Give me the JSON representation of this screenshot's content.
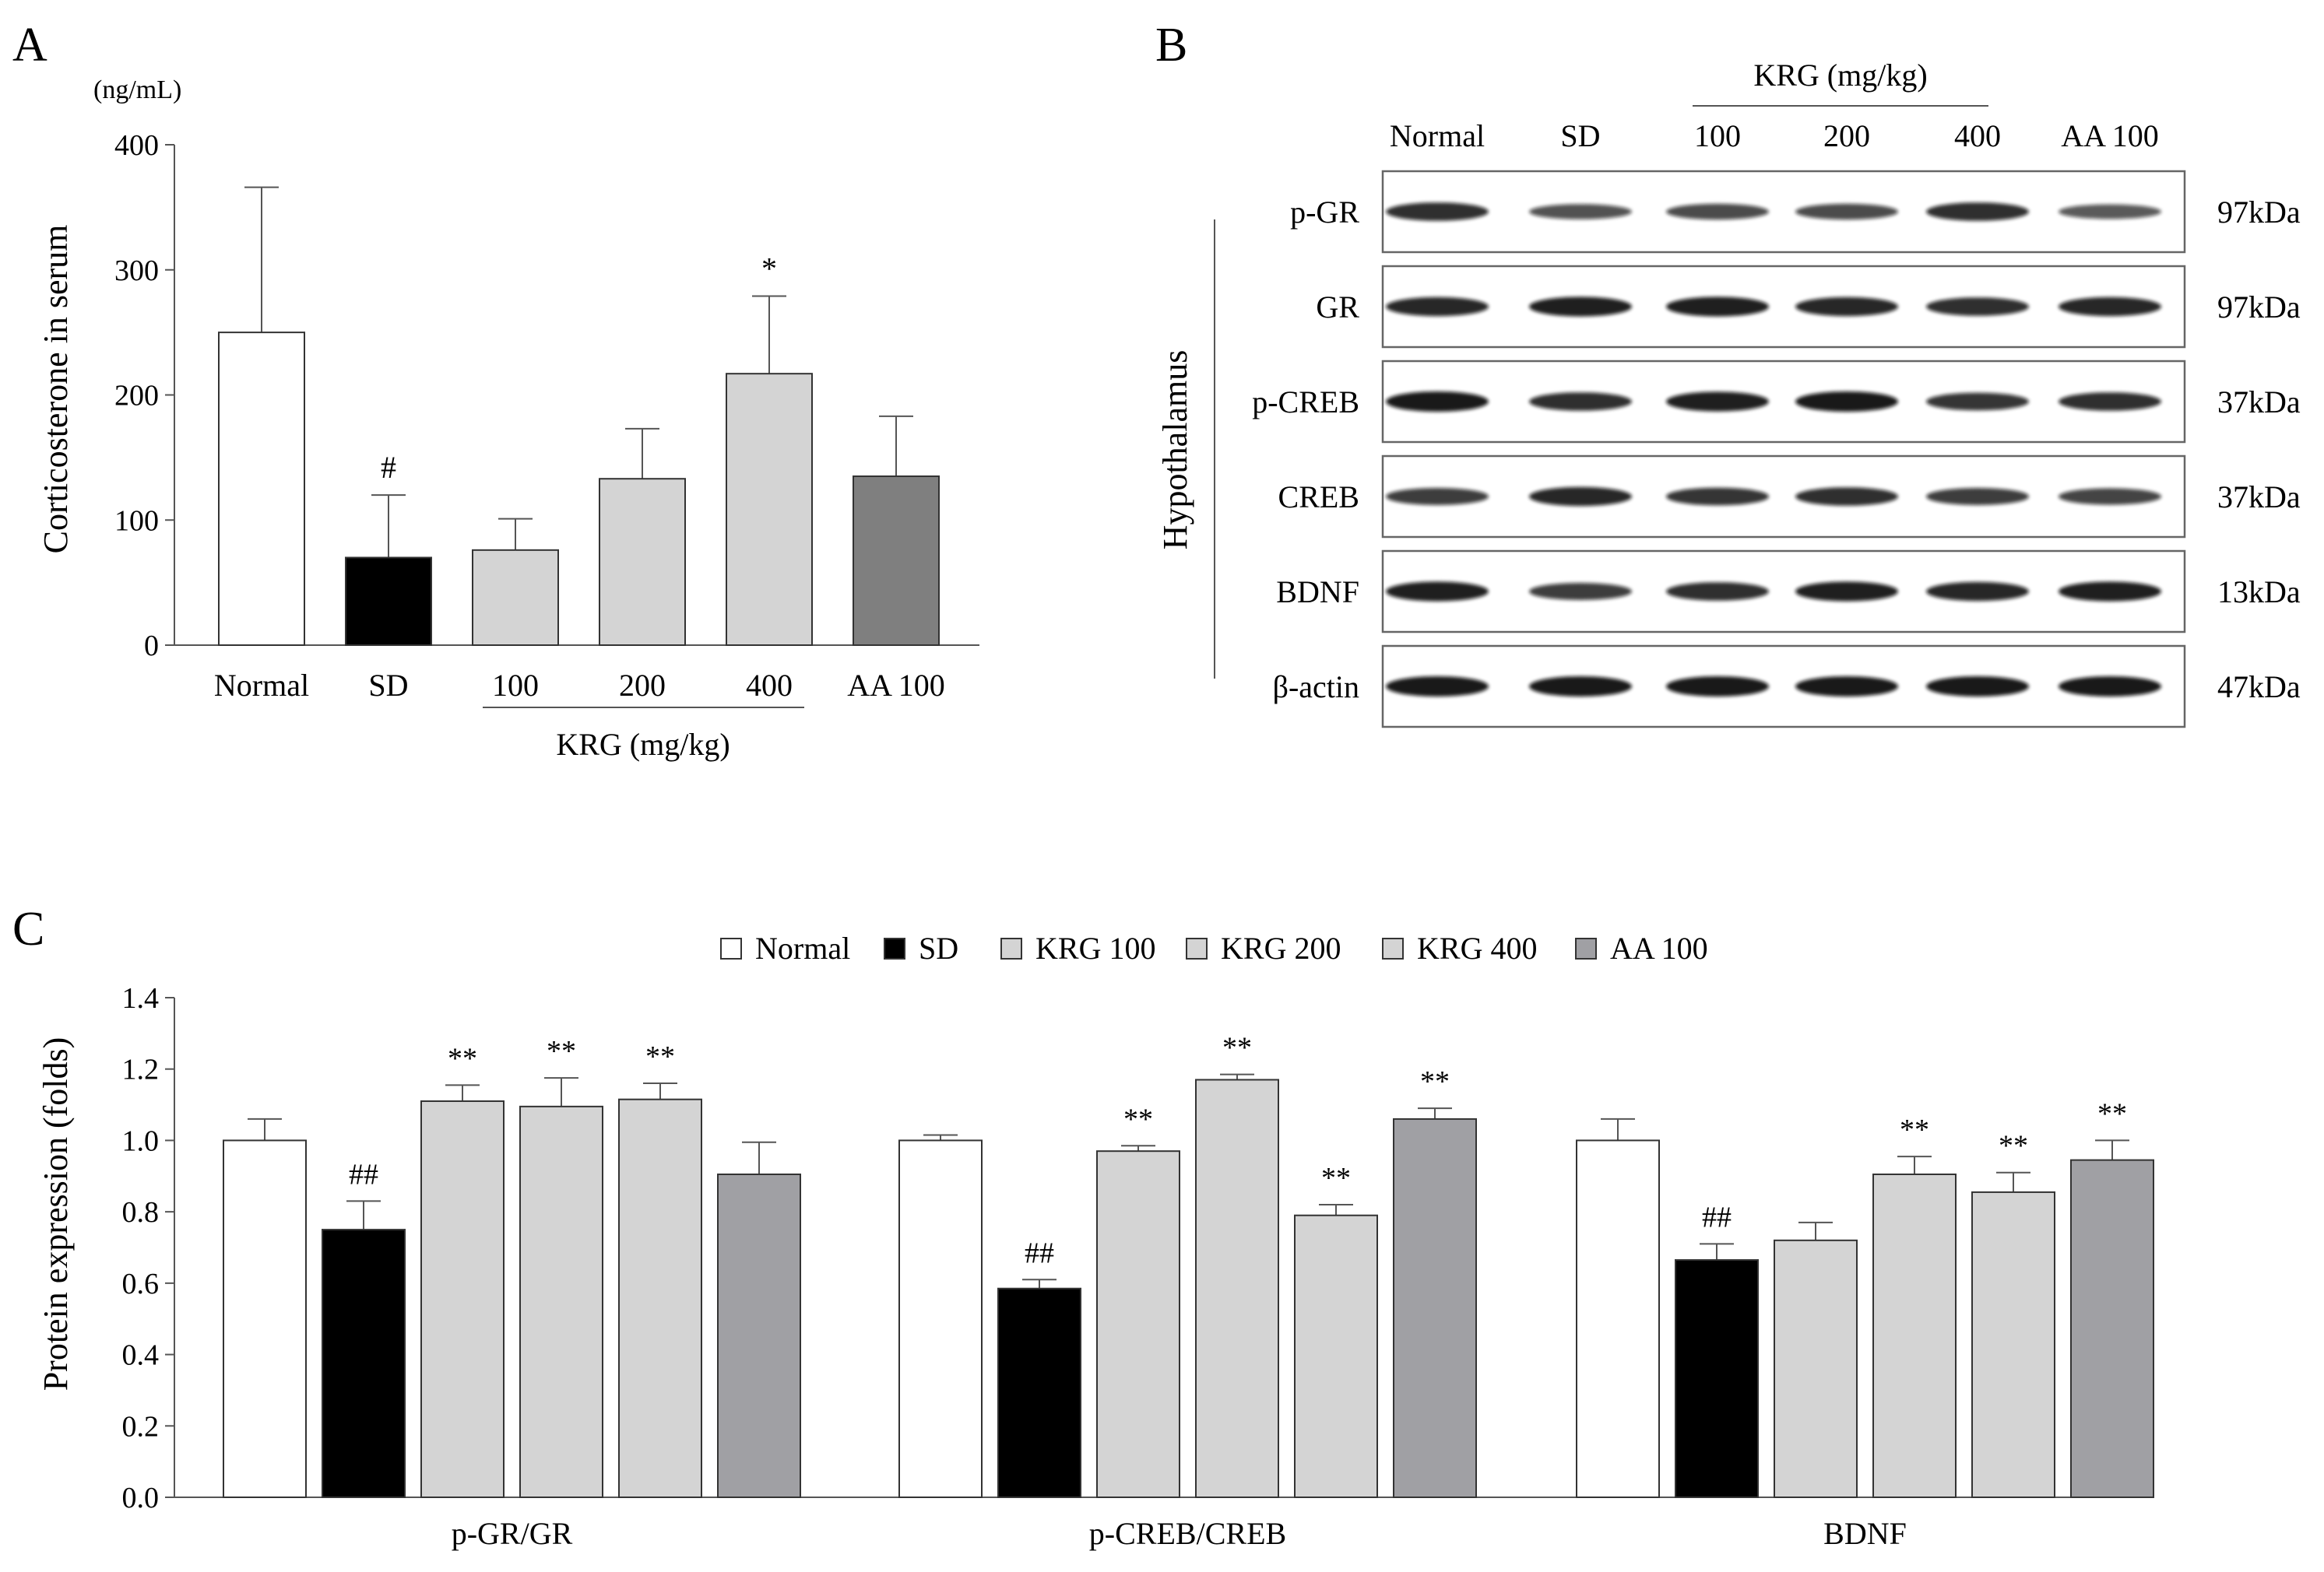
{
  "colors": {
    "Normal": "#ffffff",
    "SD": "#000000",
    "KRG": "#d4d4d4",
    "AA_A": "#7f7f7f",
    "AA_C": "#a0a0a4"
  },
  "panelA": {
    "label": "A",
    "unit": "(ng/mL)",
    "ylabel": "Corticosterone in serum",
    "group_label": "KRG (mg/kg)"
  },
  "panelB": {
    "label": "B",
    "group_label": "KRG (mg/kg)",
    "side_label": "Hypothalamus",
    "lanes": [
      "Normal",
      "SD",
      "100",
      "200",
      "400",
      "AA 100"
    ],
    "rows": [
      {
        "name": "p-GR",
        "kda": "97kDa",
        "intensity": [
          0.85,
          0.6,
          0.65,
          0.65,
          0.85,
          0.55
        ]
      },
      {
        "name": "GR",
        "kda": "97kDa",
        "intensity": [
          0.9,
          0.95,
          0.95,
          0.9,
          0.85,
          0.9
        ]
      },
      {
        "name": "p-CREB",
        "kda": "37kDa",
        "intensity": [
          1.0,
          0.85,
          0.95,
          1.0,
          0.8,
          0.85
        ]
      },
      {
        "name": "CREB",
        "kda": "37kDa",
        "intensity": [
          0.75,
          0.9,
          0.8,
          0.85,
          0.75,
          0.7
        ]
      },
      {
        "name": "BDNF",
        "kda": "13kDa",
        "intensity": [
          0.95,
          0.75,
          0.85,
          0.95,
          0.9,
          0.95
        ]
      },
      {
        "name": "β-actin",
        "kda": "47kDa",
        "intensity": [
          1.0,
          1.0,
          1.0,
          1.0,
          1.0,
          1.0
        ]
      }
    ]
  },
  "panelC": {
    "label": "C",
    "ylabel": "Protein expression (folds)",
    "legend": [
      "Normal",
      "SD",
      "KRG 100",
      "KRG 200",
      "KRG 400",
      "AA 100"
    ]
  },
  "chart_data": [
    {
      "type": "bar",
      "categories": [
        "Normal",
        "SD",
        "100",
        "200",
        "400",
        "AA 100"
      ],
      "values": [
        250,
        70,
        76,
        133,
        217,
        135
      ],
      "errors": [
        116,
        50,
        25,
        40,
        62,
        48
      ],
      "annotations": [
        "",
        "#",
        "",
        "",
        "*",
        ""
      ],
      "ylabel": "Corticosterone in serum",
      "unit": "(ng/mL)",
      "ylim": [
        0,
        400
      ],
      "yticks": [
        "0",
        "100",
        "200",
        "300",
        "400"
      ],
      "group_label": "KRG (mg/kg)"
    },
    {
      "type": "bar",
      "groups": [
        "p-GR/GR",
        "p-CREB/CREB",
        "BDNF"
      ],
      "series": [
        {
          "name": "Normal",
          "values": [
            1.0,
            1.0,
            1.0
          ],
          "errors": [
            0.06,
            0.015,
            0.06
          ],
          "annotations": [
            "",
            "",
            ""
          ]
        },
        {
          "name": "SD",
          "values": [
            0.75,
            0.585,
            0.665
          ],
          "errors": [
            0.08,
            0.025,
            0.045
          ],
          "annotations": [
            "##",
            "##",
            "##"
          ]
        },
        {
          "name": "KRG 100",
          "values": [
            1.11,
            0.97,
            0.72
          ],
          "errors": [
            0.045,
            0.015,
            0.05
          ],
          "annotations": [
            "**",
            "**",
            ""
          ]
        },
        {
          "name": "KRG 200",
          "values": [
            1.095,
            1.17,
            0.905
          ],
          "errors": [
            0.08,
            0.015,
            0.05
          ],
          "annotations": [
            "**",
            "**",
            "**"
          ]
        },
        {
          "name": "KRG 400",
          "values": [
            1.115,
            0.79,
            0.855
          ],
          "errors": [
            0.045,
            0.03,
            0.055
          ],
          "annotations": [
            "**",
            "**",
            "**"
          ]
        },
        {
          "name": "AA 100",
          "values": [
            0.905,
            1.06,
            0.945
          ],
          "errors": [
            0.09,
            0.03,
            0.055
          ],
          "annotations": [
            "",
            "**",
            "**"
          ]
        }
      ],
      "ylabel": "Protein expression (folds)",
      "ylim": [
        0,
        1.4
      ],
      "yticks": [
        "0.0",
        "0.2",
        "0.4",
        "0.6",
        "0.8",
        "1.0",
        "1.2",
        "1.4"
      ],
      "legend_position": "top"
    }
  ]
}
